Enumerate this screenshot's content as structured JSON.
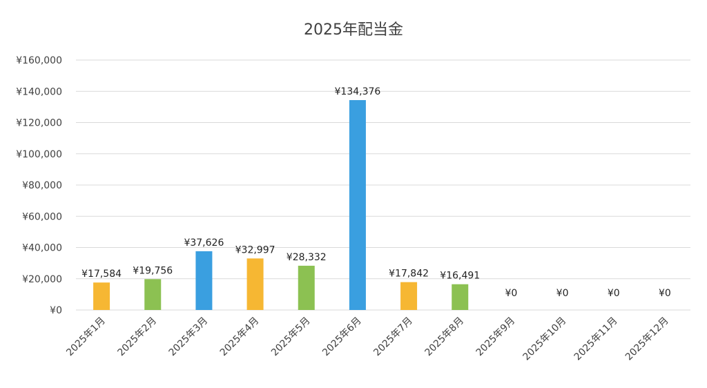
{
  "chart_data": {
    "type": "bar",
    "title": "2025年配当金",
    "xlabel": "",
    "ylabel": "",
    "ylim": [
      0,
      160000
    ],
    "yticks": [
      0,
      20000,
      40000,
      60000,
      80000,
      100000,
      120000,
      140000,
      160000
    ],
    "ytick_labels": [
      "¥0",
      "¥20,000",
      "¥40,000",
      "¥60,000",
      "¥80,000",
      "¥100,000",
      "¥120,000",
      "¥140,000",
      "¥160,000"
    ],
    "categories": [
      "2025年1月",
      "2025年2月",
      "2025年3月",
      "2025年4月",
      "2025年5月",
      "2025年6月",
      "2025年7月",
      "2025年8月",
      "2025年9月",
      "2025年10月",
      "2025年11月",
      "2025年12月"
    ],
    "values": [
      17584,
      19756,
      37626,
      32997,
      28332,
      134376,
      17842,
      16491,
      0,
      0,
      0,
      0
    ],
    "data_labels": [
      "¥17,584",
      "¥19,756",
      "¥37,626",
      "¥32,997",
      "¥28,332",
      "¥134,376",
      "¥17,842",
      "¥16,491",
      "¥0",
      "¥0",
      "¥0",
      "¥0"
    ],
    "bar_colors": [
      "#F6B733",
      "#8CC152",
      "#3A9FE0",
      "#F6B733",
      "#8CC152",
      "#3A9FE0",
      "#F6B733",
      "#8CC152",
      "#3A9FE0",
      "#F6B733",
      "#8CC152",
      "#3A9FE0"
    ],
    "grid": true,
    "legend": "none"
  }
}
